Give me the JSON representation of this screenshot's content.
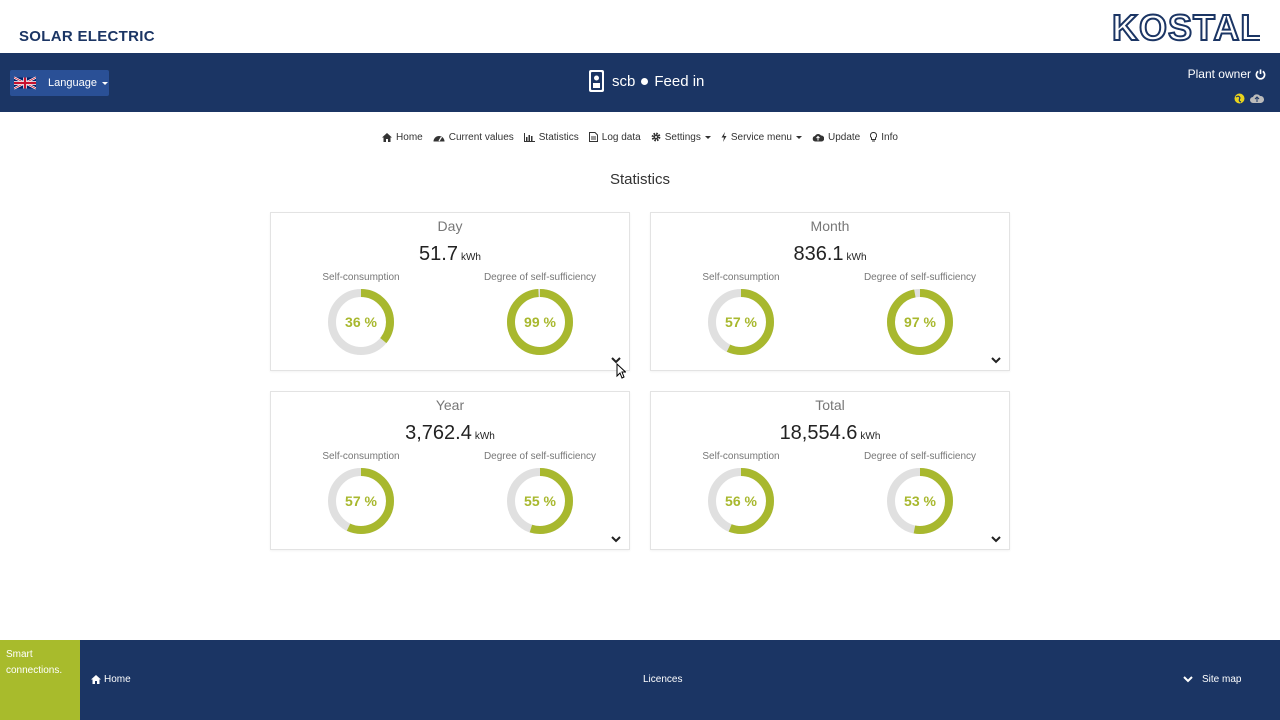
{
  "brand": {
    "text": "SOLAR ELECTRIC",
    "logo_text": "KOSTAL"
  },
  "header": {
    "language_label": "Language",
    "device_name": "scb",
    "device_status": "Feed in",
    "user_label": "Plant owner"
  },
  "nav": {
    "items": [
      {
        "label": "Home",
        "icon": "home-icon"
      },
      {
        "label": "Current values",
        "icon": "dashboard-icon"
      },
      {
        "label": "Statistics",
        "icon": "bar-chart-icon"
      },
      {
        "label": "Log data",
        "icon": "document-icon"
      },
      {
        "label": "Settings",
        "icon": "gear-icon",
        "dropdown": true
      },
      {
        "label": "Service menu",
        "icon": "bolt-icon",
        "dropdown": true
      },
      {
        "label": "Update",
        "icon": "cloud-upload-icon"
      },
      {
        "label": "Info",
        "icon": "lightbulb-icon"
      }
    ]
  },
  "page": {
    "title": "Statistics"
  },
  "colors": {
    "navy": "#1b3564",
    "accent": "#a8b82e",
    "track": "#e0e0e0"
  },
  "stats": [
    {
      "period": "Day",
      "value": "51.7",
      "unit": "kWh",
      "self_consumption_label": "Self-consumption",
      "self_consumption": 36,
      "self_consumption_text": "36 %",
      "self_sufficiency_label": "Degree of self-sufficiency",
      "self_sufficiency": 99,
      "self_sufficiency_text": "99 %"
    },
    {
      "period": "Month",
      "value": "836.1",
      "unit": "kWh",
      "self_consumption_label": "Self-consumption",
      "self_consumption": 57,
      "self_consumption_text": "57 %",
      "self_sufficiency_label": "Degree of self-sufficiency",
      "self_sufficiency": 97,
      "self_sufficiency_text": "97 %"
    },
    {
      "period": "Year",
      "value": "3,762.4",
      "unit": "kWh",
      "self_consumption_label": "Self-consumption",
      "self_consumption": 57,
      "self_consumption_text": "57 %",
      "self_sufficiency_label": "Degree of self-sufficiency",
      "self_sufficiency": 55,
      "self_sufficiency_text": "55 %"
    },
    {
      "period": "Total",
      "value": "18,554.6",
      "unit": "kWh",
      "self_consumption_label": "Self-consumption",
      "self_consumption": 56,
      "self_consumption_text": "56 %",
      "self_sufficiency_label": "Degree of self-sufficiency",
      "self_sufficiency": 53,
      "self_sufficiency_text": "53 %"
    }
  ],
  "footer": {
    "slogan_line1": "Smart",
    "slogan_line2": "connections.",
    "home_label": "Home",
    "licences_label": "Licences",
    "sitemap_label": "Site map"
  }
}
